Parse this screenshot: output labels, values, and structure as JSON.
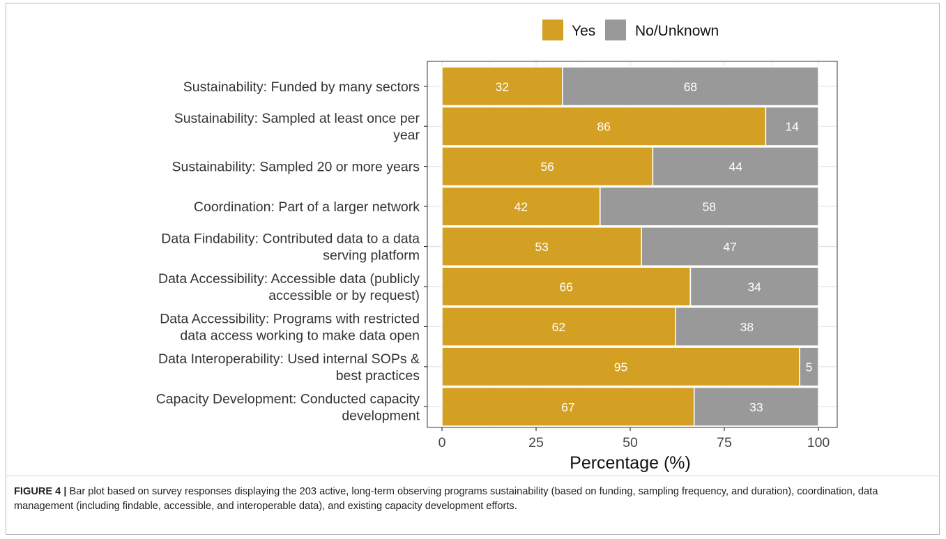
{
  "chart_data": {
    "type": "bar",
    "orientation": "horizontal",
    "stacked": true,
    "categories": [
      "Sustainability: Funded by many sectors",
      "Sustainability: Sampled at least once per year",
      "Sustainability: Sampled 20 or more years",
      "Coordination: Part of a larger network",
      "Data Findability: Contributed data to a data serving platform",
      "Data Accessibility: Accessible data (publicly accessible or by request)",
      "Data Accessibility: Programs with restricted data access working to make data open",
      "Data Interoperability: Used internal SOPs & best practices",
      "Capacity Development: Conducted capacity development"
    ],
    "category_lines": [
      [
        "Sustainability: Funded by many sectors"
      ],
      [
        "Sustainability: Sampled at least once per",
        "year"
      ],
      [
        "Sustainability: Sampled 20 or more years"
      ],
      [
        "Coordination: Part of a larger network"
      ],
      [
        "Data Findability: Contributed data to a data",
        "serving platform"
      ],
      [
        "Data Accessibility: Accessible data (publicly",
        "accessible or by request)"
      ],
      [
        "Data Accessibility: Programs with restricted",
        "data access working to make data open"
      ],
      [
        "Data Interoperability: Used internal SOPs &",
        "best practices"
      ],
      [
        "Capacity Development: Conducted capacity",
        "development"
      ]
    ],
    "series": [
      {
        "name": "Yes",
        "color": "#d4a024",
        "values": [
          32,
          86,
          56,
          42,
          53,
          66,
          62,
          95,
          67
        ]
      },
      {
        "name": "No/Unknown",
        "color": "#999999",
        "values": [
          68,
          14,
          44,
          58,
          47,
          34,
          38,
          5,
          33
        ]
      }
    ],
    "xlabel": "Percentage (%)",
    "ylabel": "",
    "xlim": [
      0,
      100
    ],
    "xticks": [
      0,
      25,
      50,
      75,
      100
    ],
    "grid": true,
    "legend_position": "top"
  },
  "caption": {
    "label": "FIGURE 4 |",
    "text": " Bar plot based on survey responses displaying the 203 active, long-term observing programs sustainability (based on funding, sampling frequency, and duration), coordination, data management (including findable, accessible, and interoperable data), and existing capacity development efforts."
  }
}
